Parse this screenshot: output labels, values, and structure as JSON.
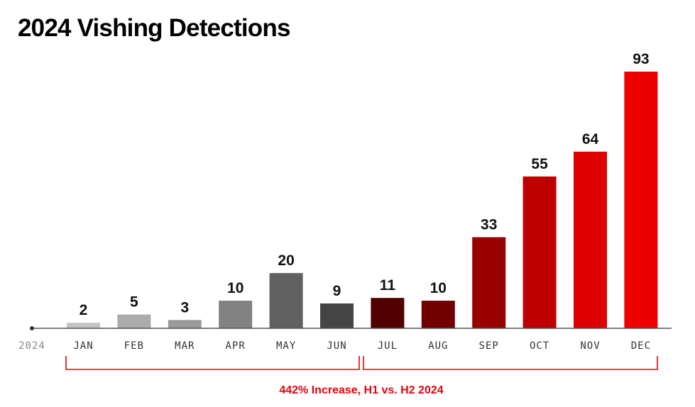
{
  "chart_data": {
    "type": "bar",
    "title": "2024 Vishing Detections",
    "axis_label": "2024",
    "categories": [
      "JAN",
      "FEB",
      "MAR",
      "APR",
      "MAY",
      "JUN",
      "JUL",
      "AUG",
      "SEP",
      "OCT",
      "NOV",
      "DEC"
    ],
    "values": [
      2,
      5,
      3,
      10,
      20,
      9,
      11,
      10,
      33,
      55,
      64,
      93
    ],
    "colors": [
      "#c4c4c4",
      "#ababab",
      "#9a9a9a",
      "#828282",
      "#616161",
      "#444444",
      "#520000",
      "#720000",
      "#990000",
      "#bf0000",
      "#df0000",
      "#ee0000"
    ],
    "ylim": [
      0,
      93
    ],
    "grid": false,
    "annotation": {
      "text": "442% Increase, H1 vs. H2 2024",
      "groups": [
        [
          "JAN",
          "JUN"
        ],
        [
          "JUL",
          "DEC"
        ]
      ],
      "color": "#e8000b"
    }
  }
}
